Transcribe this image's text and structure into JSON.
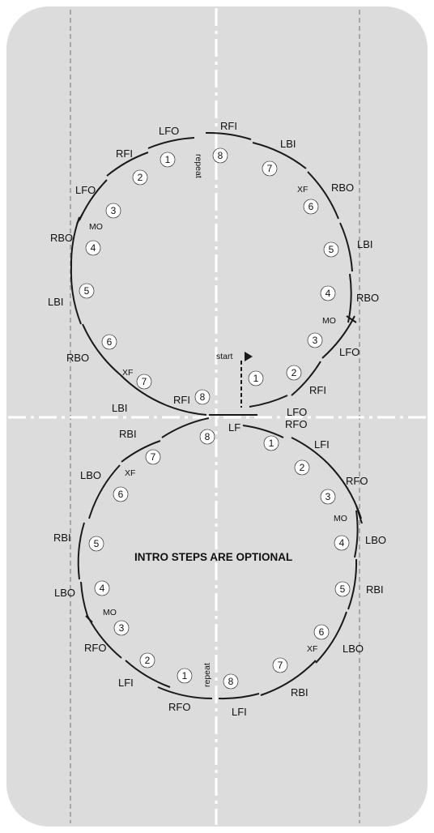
{
  "colors": {
    "rink": "#dcdcdc",
    "line": "#ffffff",
    "lane": "#9a9a9a",
    "stroke": "#1a1a1a"
  },
  "note": "INTRO STEPS ARE OPTIONAL",
  "start_label": "start",
  "repeat_label": "repeat",
  "top_circle": {
    "edges": [
      "LFO",
      "RFI",
      "LBI",
      "RBO",
      "LBI",
      "RBO",
      "LFO",
      "RFI",
      "LFO",
      "RFI",
      "LFO",
      "RBO",
      "LBI",
      "RBO",
      "LBI",
      "RFI"
    ],
    "steps": [
      "1",
      "2",
      "3",
      "4",
      "5",
      "6",
      "7",
      "8",
      "8",
      "7",
      "6",
      "5",
      "4",
      "3",
      "2",
      "1"
    ],
    "marks": [
      "MO",
      "XF",
      "XF",
      "MO"
    ]
  },
  "bottom_circle": {
    "edges": [
      "RBI",
      "LBO",
      "RBI",
      "LBO",
      "RFO",
      "LFI",
      "RFO",
      "LFI",
      "RBI",
      "LBO",
      "RBI",
      "LBO",
      "RFO",
      "LFI",
      "RFO",
      "LF"
    ],
    "steps": [
      "8",
      "7",
      "6",
      "5",
      "4",
      "3",
      "2",
      "1",
      "8",
      "7",
      "6",
      "5",
      "4",
      "3",
      "2",
      "1"
    ],
    "marks": [
      "XF",
      "MO",
      "XF",
      "MO"
    ]
  }
}
